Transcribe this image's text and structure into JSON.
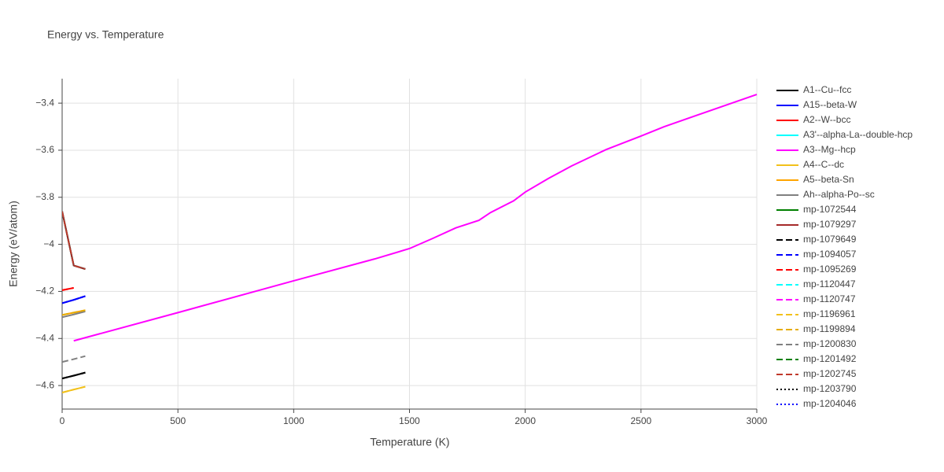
{
  "chart_data": {
    "type": "line",
    "title": "Energy vs. Temperature",
    "x_label": "Temperature (K)",
    "y_label": "Energy (eV/atom)",
    "xlim": [
      0,
      3000
    ],
    "xticks": [
      0,
      500,
      1000,
      1500,
      2000,
      2500,
      3000
    ],
    "ylim": [
      -4.7,
      -3.296
    ],
    "yticks": [
      {
        "value": -3.4,
        "label": "−3.4"
      },
      {
        "value": -3.6,
        "label": "−3.6"
      },
      {
        "value": -3.8,
        "label": "−3.8"
      },
      {
        "value": -4,
        "label": "−4"
      },
      {
        "value": -4.2,
        "label": "−4.2"
      },
      {
        "value": -4.4,
        "label": "−4.4"
      },
      {
        "value": -4.6,
        "label": "−4.6"
      }
    ],
    "grid": true,
    "legend": "right",
    "series": [
      {
        "name": "A1--Cu--fcc",
        "color": "#000000",
        "dash": "solid",
        "x": [
          0,
          50,
          100
        ],
        "values": [
          -4.57,
          -4.558,
          -4.545
        ]
      },
      {
        "name": "A15--beta-W",
        "color": "#0000ff",
        "dash": "solid",
        "x": [
          0,
          50,
          100
        ],
        "values": [
          -4.25,
          -4.236,
          -4.22
        ]
      },
      {
        "name": "A2--W--bcc",
        "color": "#ff0000",
        "dash": "solid",
        "x": [
          0,
          50
        ],
        "values": [
          -4.195,
          -4.185
        ]
      },
      {
        "name": "A3'--alpha-La--double-hcp",
        "color": "#00ffff",
        "dash": "solid",
        "x": [
          0,
          50,
          100
        ],
        "values": [
          -3.86,
          -4.09,
          -4.105
        ]
      },
      {
        "name": "A3--Mg--hcp",
        "color": "#ff00ff",
        "dash": "solid",
        "x": [
          50,
          500,
          1000,
          1350,
          1500,
          1600,
          1700,
          1800,
          1850,
          1950,
          2000,
          2100,
          2200,
          2350,
          2500,
          2600,
          3000
        ],
        "values": [
          -4.41,
          -4.29,
          -4.155,
          -4.062,
          -4.018,
          -3.975,
          -3.93,
          -3.898,
          -3.865,
          -3.815,
          -3.778,
          -3.72,
          -3.667,
          -3.597,
          -3.54,
          -3.5,
          -3.363
        ]
      },
      {
        "name": "A4--C--dc",
        "color": "#f2c11b",
        "dash": "solid",
        "x": [
          0,
          50,
          100
        ],
        "values": [
          -4.63,
          -4.617,
          -4.605
        ]
      },
      {
        "name": "A5--beta-Sn",
        "color": "#ffa500",
        "dash": "solid",
        "x": [
          0,
          50,
          100
        ],
        "values": [
          -4.3,
          -4.29,
          -4.28
        ]
      },
      {
        "name": "Ah--alpha-Po--sc",
        "color": "#808080",
        "dash": "solid",
        "x": [
          0,
          50,
          100
        ],
        "values": [
          -4.31,
          -4.298,
          -4.285
        ]
      },
      {
        "name": "mp-1072544",
        "color": "#008000",
        "dash": "solid",
        "x": [
          0,
          50,
          100
        ],
        "values": [
          -3.86,
          -4.09,
          -4.105
        ]
      },
      {
        "name": "mp-1079297",
        "color": "#a52a2a",
        "dash": "solid",
        "x": [
          0,
          50,
          100
        ],
        "values": [
          -3.86,
          -4.09,
          -4.105
        ]
      },
      {
        "name": "mp-1079649",
        "color": "#000000",
        "dash": "dash",
        "x": [
          0,
          50,
          100
        ],
        "values": [
          -4.57,
          -4.558,
          -4.545
        ]
      },
      {
        "name": "mp-1094057",
        "color": "#0000ff",
        "dash": "dash",
        "x": [
          0,
          50,
          100
        ],
        "values": [
          -4.25,
          -4.236,
          -4.22
        ]
      },
      {
        "name": "mp-1095269",
        "color": "#ff0000",
        "dash": "dash",
        "x": [
          0,
          50
        ],
        "values": [
          -4.195,
          -4.185
        ]
      },
      {
        "name": "mp-1120447",
        "color": "#00ffff",
        "dash": "dash",
        "x": [
          0,
          50,
          100
        ],
        "values": [
          -3.86,
          -4.09,
          -4.105
        ]
      },
      {
        "name": "mp-1120747",
        "color": "#ff00ff",
        "dash": "dash",
        "x": [
          0,
          50,
          100
        ],
        "values": [
          -3.86,
          -4.09,
          -4.105
        ]
      },
      {
        "name": "mp-1196961",
        "color": "#f2c11b",
        "dash": "dash",
        "x": [
          0,
          50,
          100
        ],
        "values": [
          -4.63,
          -4.617,
          -4.605
        ]
      },
      {
        "name": "mp-1199894",
        "color": "#e6ac00",
        "dash": "dash",
        "x": [
          0,
          50,
          100
        ],
        "values": [
          -4.3,
          -4.29,
          -4.28
        ]
      },
      {
        "name": "mp-1200830",
        "color": "#808080",
        "dash": "dash",
        "x": [
          0,
          50,
          100
        ],
        "values": [
          -4.5,
          -4.488,
          -4.475
        ]
      },
      {
        "name": "mp-1201492",
        "color": "#008000",
        "dash": "dash",
        "x": [
          0,
          50,
          100
        ],
        "values": [
          -3.86,
          -4.09,
          -4.105
        ]
      },
      {
        "name": "mp-1202745",
        "color": "#c0392b",
        "dash": "dash",
        "x": [
          0,
          50,
          100
        ],
        "values": [
          -3.86,
          -4.09,
          -4.105
        ]
      },
      {
        "name": "mp-1203790",
        "color": "#000000",
        "dash": "dot",
        "x": [
          0,
          50,
          100
        ],
        "values": [
          -4.57,
          -4.558,
          -4.545
        ]
      },
      {
        "name": "mp-1204046",
        "color": "#0000ff",
        "dash": "dot",
        "x": [
          0,
          50,
          100
        ],
        "values": [
          -4.25,
          -4.236,
          -4.22
        ]
      }
    ]
  }
}
